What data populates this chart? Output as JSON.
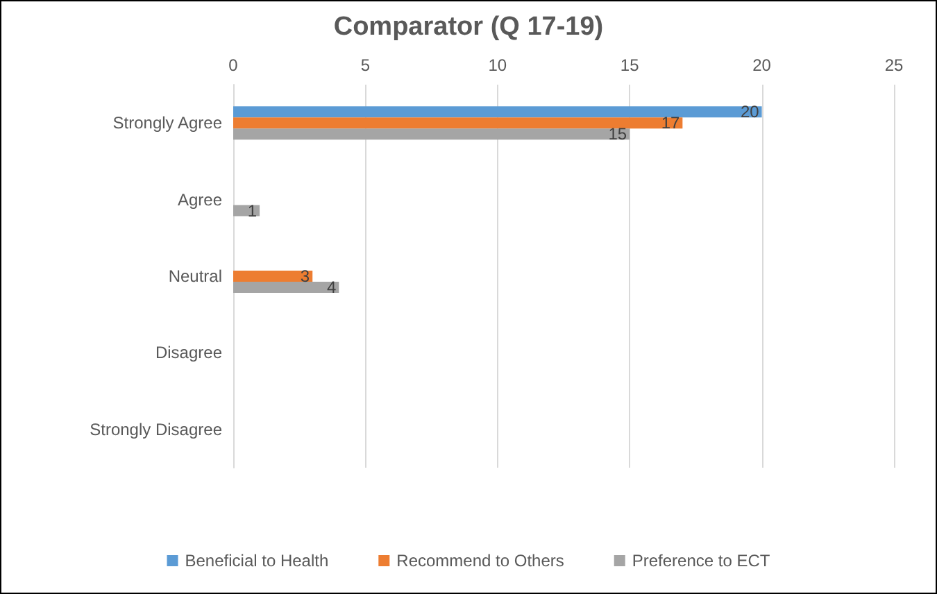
{
  "chart_data": {
    "type": "bar",
    "orientation": "horizontal",
    "title": "Comparator (Q 17-19)",
    "categories": [
      "Strongly Agree",
      "Agree",
      "Neutral",
      "Disagree",
      "Strongly Disagree"
    ],
    "series": [
      {
        "name": "Beneficial to Health",
        "color": "#5b9bd5",
        "values": [
          20,
          null,
          null,
          null,
          null
        ]
      },
      {
        "name": "Recommend to Others",
        "color": "#ed7d31",
        "values": [
          17,
          null,
          3,
          null,
          null
        ]
      },
      {
        "name": "Preference to ECT",
        "color": "#a5a5a5",
        "values": [
          15,
          1,
          4,
          null,
          null
        ]
      }
    ],
    "xlim": [
      0,
      25
    ],
    "xticks": [
      0,
      5,
      10,
      15,
      20,
      25
    ],
    "grid": "x",
    "legend": "bottom",
    "data_labels": true
  }
}
